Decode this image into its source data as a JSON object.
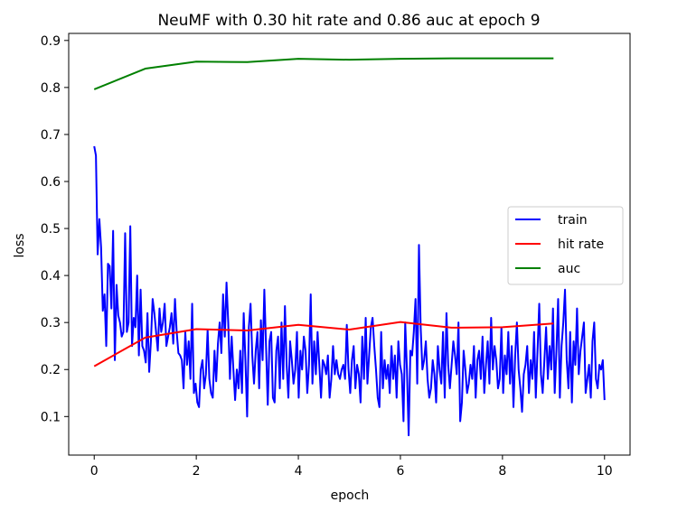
{
  "chart_data": {
    "type": "line",
    "title": "NeuMF with 0.30 hit rate and 0.86 auc at epoch 9",
    "xlabel": "epoch",
    "ylabel": "loss",
    "xlim": [
      -0.5,
      10.5
    ],
    "ylim": [
      0.018,
      0.915
    ],
    "xticks": [
      0,
      2,
      4,
      6,
      8,
      10
    ],
    "yticks": [
      0.1,
      0.2,
      0.3,
      0.4,
      0.5,
      0.6,
      0.7,
      0.8,
      0.9
    ],
    "grid": false,
    "legend_position": "center-right",
    "series": [
      {
        "name": "train",
        "color": "#0000ff",
        "x_start": 0,
        "x_end": 10,
        "values": [
          0.675,
          0.655,
          0.445,
          0.52,
          0.46,
          0.325,
          0.36,
          0.25,
          0.425,
          0.42,
          0.33,
          0.495,
          0.22,
          0.38,
          0.315,
          0.3,
          0.27,
          0.28,
          0.49,
          0.28,
          0.3,
          0.505,
          0.25,
          0.31,
          0.29,
          0.4,
          0.23,
          0.37,
          0.25,
          0.24,
          0.215,
          0.32,
          0.195,
          0.26,
          0.35,
          0.32,
          0.28,
          0.24,
          0.33,
          0.28,
          0.3,
          0.34,
          0.25,
          0.27,
          0.29,
          0.32,
          0.255,
          0.35,
          0.28,
          0.235,
          0.23,
          0.22,
          0.16,
          0.28,
          0.21,
          0.26,
          0.18,
          0.34,
          0.15,
          0.17,
          0.13,
          0.12,
          0.2,
          0.22,
          0.16,
          0.19,
          0.285,
          0.18,
          0.15,
          0.14,
          0.24,
          0.175,
          0.255,
          0.3,
          0.235,
          0.36,
          0.27,
          0.385,
          0.3,
          0.18,
          0.27,
          0.2,
          0.135,
          0.2,
          0.16,
          0.24,
          0.15,
          0.32,
          0.22,
          0.1,
          0.29,
          0.34,
          0.23,
          0.17,
          0.24,
          0.28,
          0.16,
          0.305,
          0.22,
          0.37,
          0.25,
          0.125,
          0.26,
          0.28,
          0.14,
          0.13,
          0.24,
          0.27,
          0.16,
          0.3,
          0.18,
          0.335,
          0.21,
          0.14,
          0.26,
          0.22,
          0.17,
          0.2,
          0.28,
          0.14,
          0.24,
          0.2,
          0.27,
          0.24,
          0.15,
          0.21,
          0.36,
          0.17,
          0.26,
          0.19,
          0.28,
          0.21,
          0.14,
          0.22,
          0.21,
          0.19,
          0.23,
          0.14,
          0.18,
          0.25,
          0.19,
          0.22,
          0.19,
          0.18,
          0.2,
          0.21,
          0.18,
          0.295,
          0.2,
          0.15,
          0.22,
          0.25,
          0.16,
          0.21,
          0.19,
          0.13,
          0.27,
          0.18,
          0.31,
          0.17,
          0.23,
          0.29,
          0.31,
          0.25,
          0.2,
          0.14,
          0.12,
          0.28,
          0.16,
          0.22,
          0.18,
          0.21,
          0.15,
          0.25,
          0.18,
          0.23,
          0.14,
          0.26,
          0.21,
          0.19,
          0.09,
          0.3,
          0.2,
          0.06,
          0.24,
          0.23,
          0.28,
          0.35,
          0.17,
          0.465,
          0.29,
          0.2,
          0.22,
          0.26,
          0.18,
          0.14,
          0.16,
          0.22,
          0.19,
          0.13,
          0.25,
          0.2,
          0.17,
          0.28,
          0.14,
          0.32,
          0.21,
          0.16,
          0.21,
          0.26,
          0.23,
          0.19,
          0.3,
          0.09,
          0.13,
          0.24,
          0.2,
          0.15,
          0.17,
          0.21,
          0.18,
          0.25,
          0.14,
          0.22,
          0.24,
          0.18,
          0.27,
          0.15,
          0.21,
          0.26,
          0.17,
          0.31,
          0.2,
          0.25,
          0.22,
          0.16,
          0.18,
          0.29,
          0.15,
          0.23,
          0.19,
          0.28,
          0.17,
          0.25,
          0.12,
          0.23,
          0.3,
          0.2,
          0.16,
          0.11,
          0.19,
          0.21,
          0.25,
          0.15,
          0.22,
          0.18,
          0.28,
          0.14,
          0.24,
          0.34,
          0.19,
          0.15,
          0.22,
          0.29,
          0.18,
          0.25,
          0.2,
          0.33,
          0.15,
          0.24,
          0.35,
          0.14,
          0.25,
          0.3,
          0.37,
          0.22,
          0.16,
          0.28,
          0.13,
          0.26,
          0.21,
          0.33,
          0.19,
          0.24,
          0.27,
          0.3,
          0.15,
          0.18,
          0.21,
          0.14,
          0.26,
          0.3,
          0.18,
          0.16,
          0.21,
          0.2,
          0.22,
          0.135
        ]
      },
      {
        "name": "hit rate",
        "color": "#ff0000",
        "x": [
          0,
          1,
          2,
          3,
          4,
          5,
          6,
          7,
          8,
          9
        ],
        "values": [
          0.207,
          0.268,
          0.286,
          0.283,
          0.295,
          0.285,
          0.301,
          0.289,
          0.29,
          0.298
        ]
      },
      {
        "name": "auc",
        "color": "#008000",
        "x": [
          0,
          1,
          2,
          3,
          4,
          5,
          6,
          7,
          8,
          9
        ],
        "values": [
          0.796,
          0.84,
          0.855,
          0.854,
          0.861,
          0.859,
          0.861,
          0.862,
          0.862,
          0.862
        ]
      }
    ]
  }
}
